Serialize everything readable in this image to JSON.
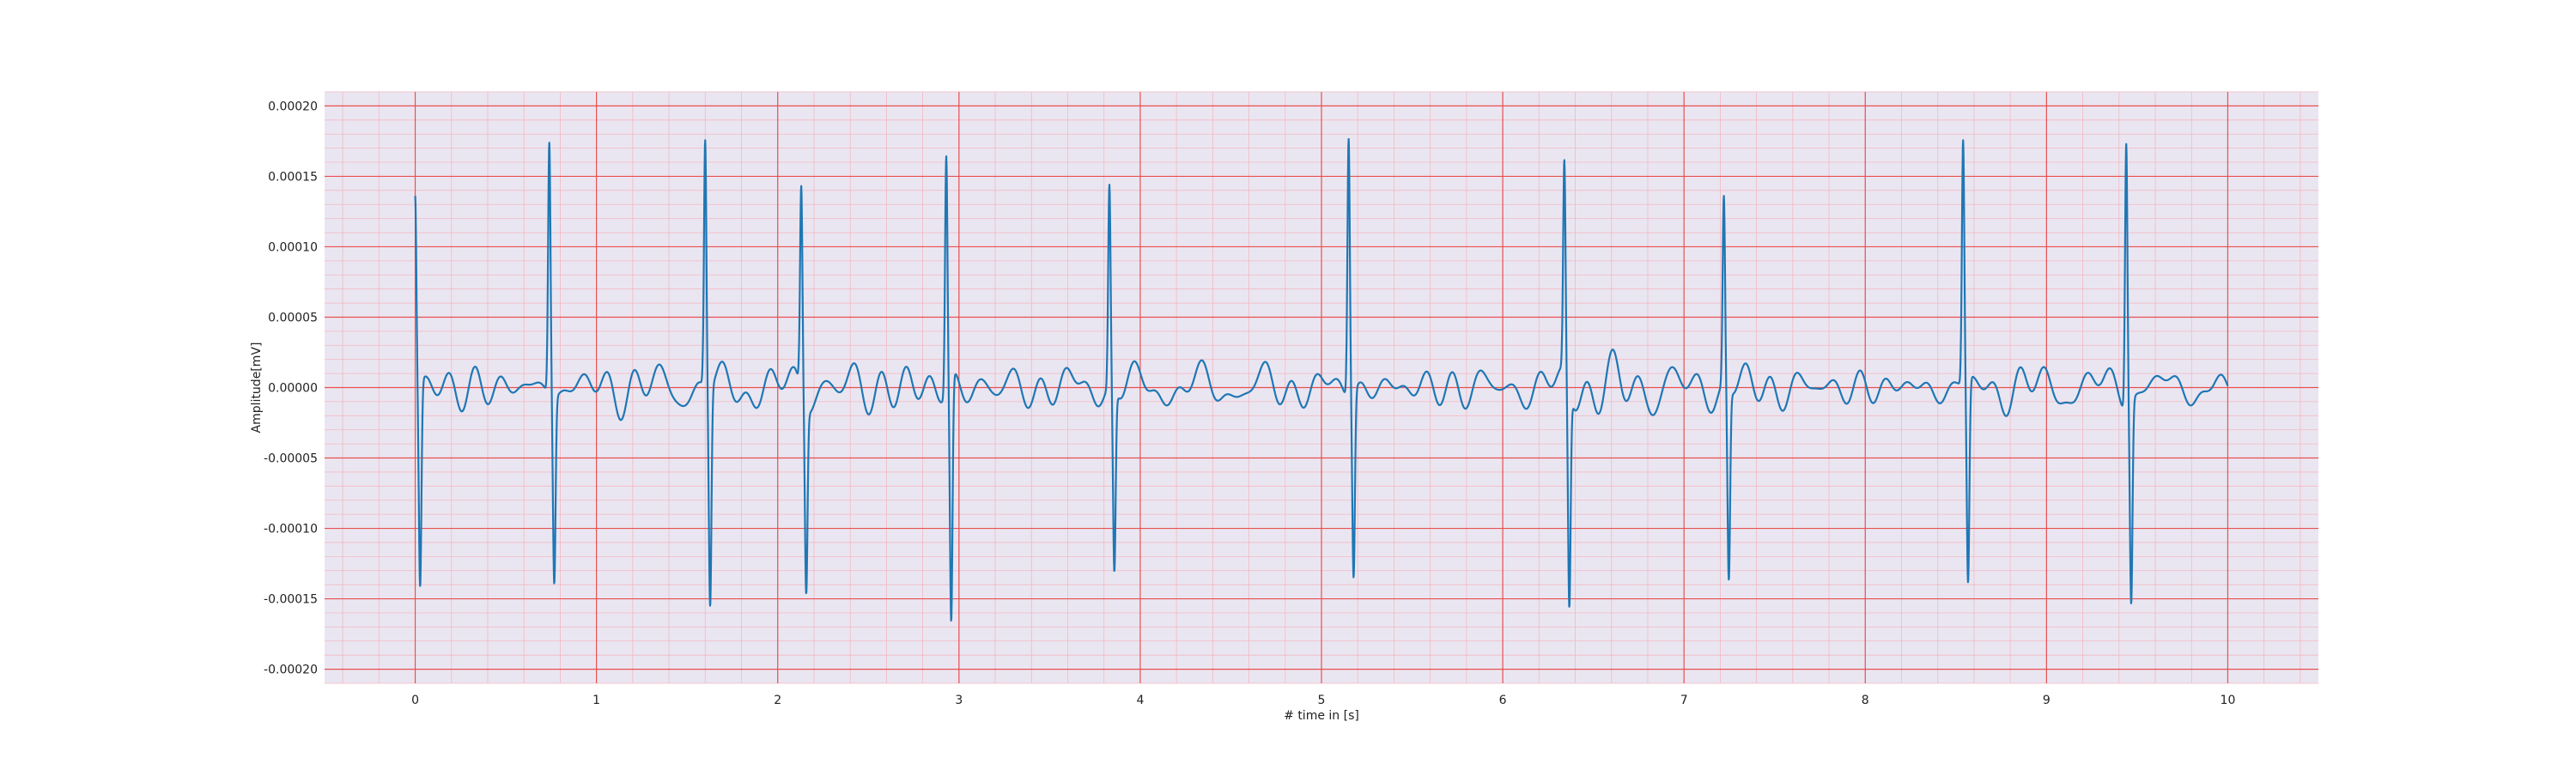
{
  "chart_data": {
    "type": "line",
    "title": "",
    "xlabel": "# time in [s]",
    "ylabel": "Amplitude[mV]",
    "xlim": [
      -0.5,
      10.5
    ],
    "ylim": [
      -0.00021,
      0.00021
    ],
    "x_ticks": [
      0,
      1,
      2,
      3,
      4,
      5,
      6,
      7,
      8,
      9,
      10
    ],
    "x_tick_labels": [
      "0",
      "1",
      "2",
      "3",
      "4",
      "5",
      "6",
      "7",
      "8",
      "9",
      "10"
    ],
    "y_ticks": [
      -0.0002,
      -0.00015,
      -0.0001,
      -5e-05,
      0,
      5e-05,
      0.0001,
      0.00015,
      0.0002
    ],
    "y_tick_labels": [
      "-0.00020",
      "-0.00015",
      "-0.00010",
      "-0.00005",
      "0.00000",
      "0.00005",
      "0.00010",
      "0.00015",
      "0.00020"
    ],
    "grid": "major and minor (ECG paper style)",
    "colors": {
      "background": "#eae6f1",
      "major_grid": "#e85050",
      "minor_grid": "#f2b8c2",
      "line": "#1f77b4"
    },
    "series": [
      {
        "beats": [
          {
            "t": 0.0,
            "peak": 0.000155,
            "trough": -0.00016
          },
          {
            "t": 0.74,
            "peak": 0.000198,
            "trough": -0.000158
          },
          {
            "t": 1.6,
            "peak": 0.0002,
            "trough": -0.000176
          },
          {
            "t": 2.13,
            "peak": 0.000163,
            "trough": -0.000166
          },
          {
            "t": 2.93,
            "peak": 0.000187,
            "trough": -0.000188
          },
          {
            "t": 3.83,
            "peak": 0.000164,
            "trough": -0.000148
          },
          {
            "t": 5.15,
            "peak": 0.000201,
            "trough": -0.000153
          },
          {
            "t": 6.34,
            "peak": 0.000184,
            "trough": -0.000177
          },
          {
            "t": 7.22,
            "peak": 0.000155,
            "trough": -0.000155
          },
          {
            "t": 8.54,
            "peak": 0.0002,
            "trough": -0.000157
          },
          {
            "t": 9.44,
            "peak": 0.000197,
            "trough": -0.000174
          }
        ],
        "baseline_range": [
          -3e-05,
          3.5e-05
        ],
        "t_start": 0,
        "t_end": 10
      }
    ]
  }
}
